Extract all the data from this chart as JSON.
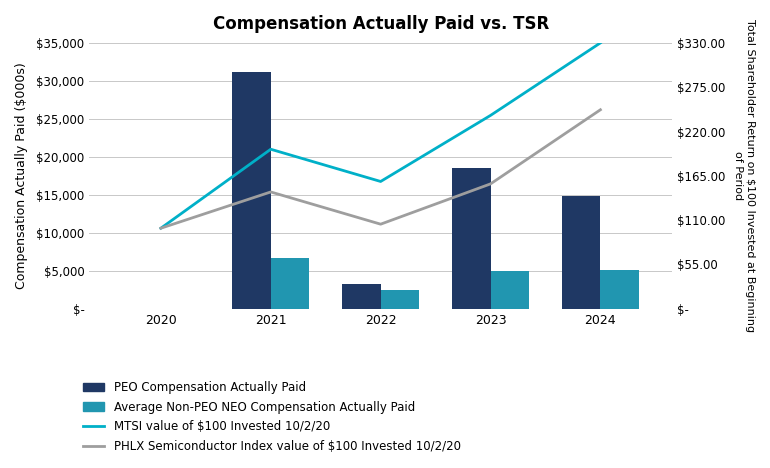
{
  "title": "Compensation Actually Paid vs. TSR",
  "years": [
    2020,
    2021,
    2022,
    2023,
    2024
  ],
  "peo_cap": [
    0,
    31200,
    3300,
    18500,
    14900
  ],
  "avg_neo_cap": [
    0,
    6700,
    2500,
    5000,
    5100
  ],
  "mtsi_tsr": [
    100,
    198,
    158,
    240,
    330
  ],
  "phlx_tsr": [
    100,
    145,
    105,
    155,
    247
  ],
  "bar_color_peo": "#1F3864",
  "bar_color_neo": "#2196B0",
  "line_color_mtsi": "#00B0C8",
  "line_color_phlx": "#9E9E9E",
  "ylabel_left": "Compensation Actually Paid ($000s)",
  "ylabel_right": "Total Shareholder Return on $100 Invested at Beginning\nof Period",
  "ylim_left": [
    0,
    35000
  ],
  "ylim_right": [
    0,
    330
  ],
  "yticks_left": [
    0,
    5000,
    10000,
    15000,
    20000,
    25000,
    30000,
    35000
  ],
  "ytick_labels_left": [
    "$-",
    "$5,000",
    "$10,000",
    "$15,000",
    "$20,000",
    "$25,000",
    "$30,000",
    "$35,000"
  ],
  "yticks_right": [
    0,
    55,
    110,
    165,
    220,
    275,
    330
  ],
  "ytick_labels_right": [
    "$-",
    "$55.00",
    "$110.00",
    "$165.00",
    "$220.00",
    "$275.00",
    "$330.00"
  ],
  "legend_labels": [
    "PEO Compensation Actually Paid",
    "Average Non-PEO NEO Compensation Actually Paid",
    "MTSI value of $100 Invested 10/2/20",
    "PHLX Semiconductor Index value of $100 Invested 10/2/20"
  ],
  "background_color": "#FFFFFF",
  "grid_color": "#C8C8C8"
}
